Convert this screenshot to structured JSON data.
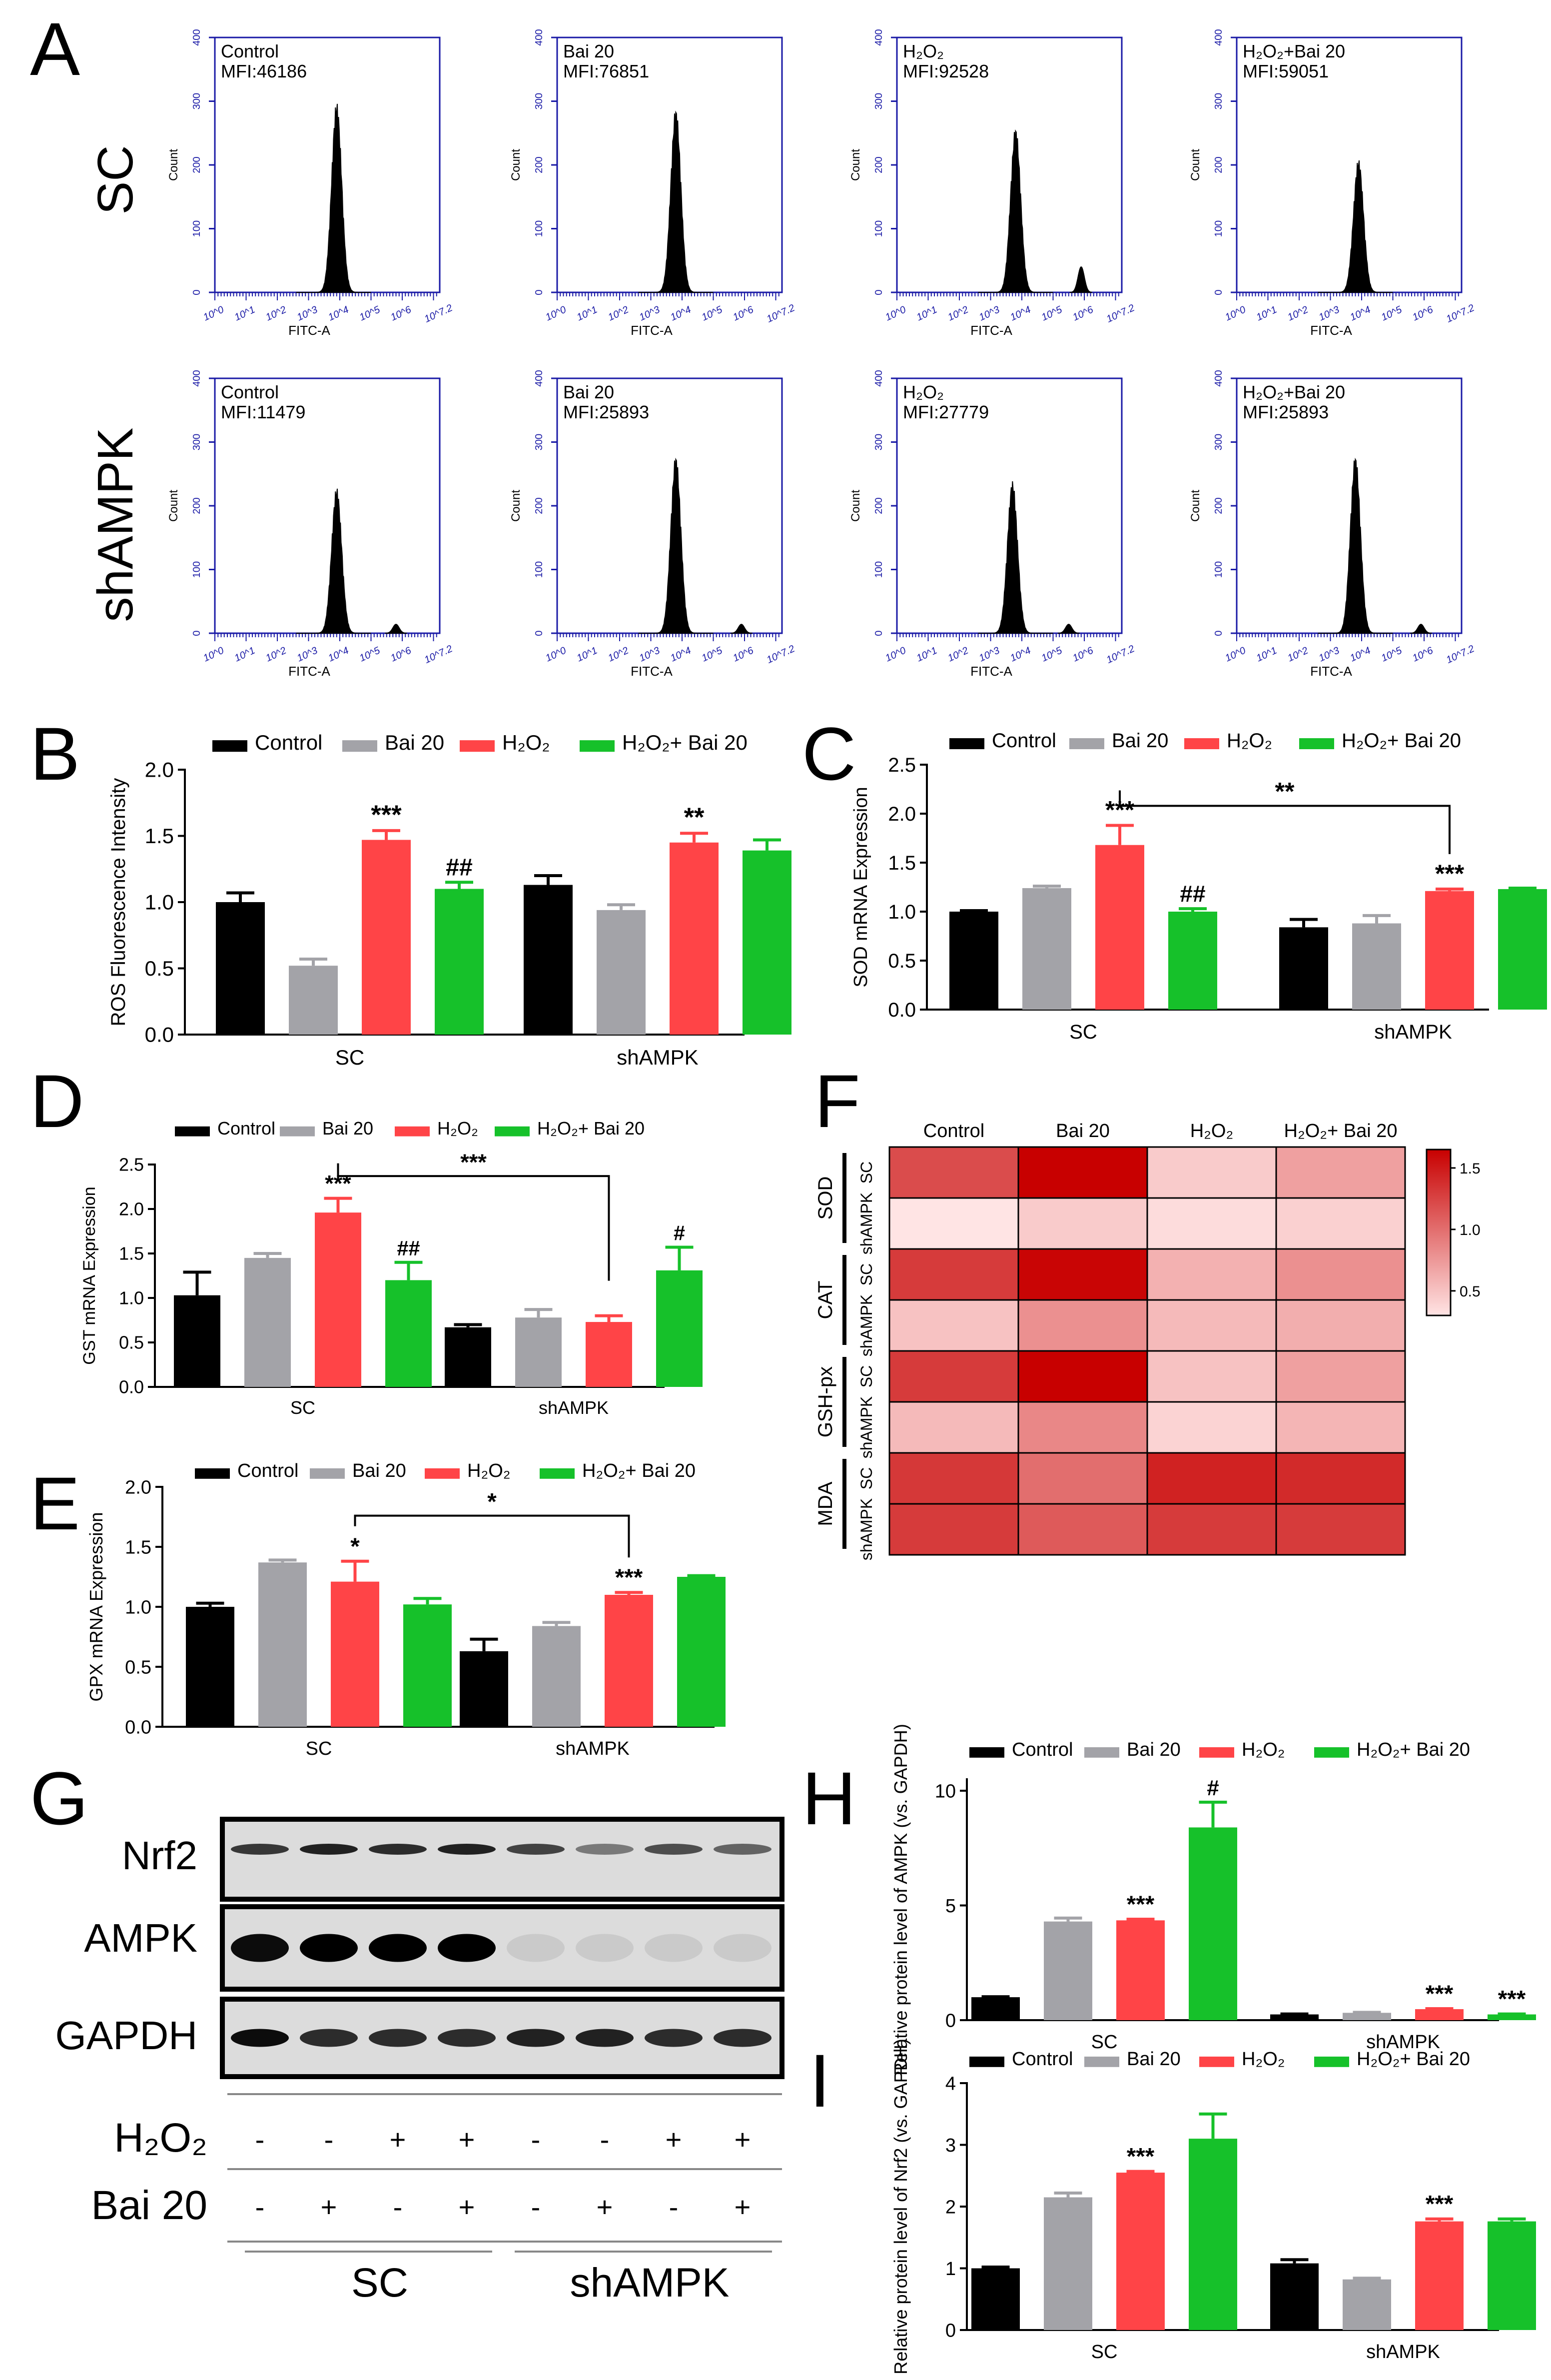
{
  "colors": {
    "control": "#000000",
    "bai": "#a3a3a8",
    "h2o2": "#ff4447",
    "combo": "#16c12a",
    "flowAxis": "#1a1aa6",
    "heatLow": "#ffe4e4",
    "heatHigh": "#c80000"
  },
  "panel_letters": [
    "A",
    "B",
    "C",
    "D",
    "E",
    "F",
    "G",
    "H",
    "I"
  ],
  "legend": {
    "control": "Control",
    "bai": "Bai 20",
    "h2o2": "H₂O₂",
    "combo": "H₂O₂+ Bai 20"
  },
  "flow": {
    "row_labels": [
      "SC",
      "shAMPK"
    ],
    "y_axis_label": "Count",
    "x_axis_label": "FITC-A",
    "y_ticks": [
      "0",
      "100",
      "200",
      "300",
      "400"
    ],
    "x_ticks": [
      "10^0",
      "10^1",
      "10^2",
      "10^3",
      "10^4",
      "10^5",
      "10^6",
      "10^7.2"
    ],
    "panels": [
      {
        "row": 0,
        "col": 0,
        "title": "Control",
        "mfi": "MFI:46186",
        "peak": 3.9,
        "peak_height": 300,
        "secondary": null
      },
      {
        "row": 0,
        "col": 1,
        "title": "Bai 20",
        "mfi": "MFI:76851",
        "peak": 3.8,
        "peak_height": 290,
        "secondary": null
      },
      {
        "row": 0,
        "col": 2,
        "title": "H₂O₂",
        "mfi": "MFI:92528",
        "peak": 3.8,
        "peak_height": 260,
        "secondary": 5.9
      },
      {
        "row": 0,
        "col": 3,
        "title": "H₂O₂+Bai 20",
        "mfi": "MFI:59051",
        "peak": 3.9,
        "peak_height": 210,
        "secondary": null
      },
      {
        "row": 1,
        "col": 0,
        "title": "Control",
        "mfi": "MFI:11479",
        "peak": 3.9,
        "peak_height": 230,
        "secondary": 5.8
      },
      {
        "row": 1,
        "col": 1,
        "title": "Bai 20",
        "mfi": "MFI:25893",
        "peak": 3.8,
        "peak_height": 280,
        "secondary": 5.9
      },
      {
        "row": 1,
        "col": 2,
        "title": "H₂O₂",
        "mfi": "MFI:27779",
        "peak": 3.7,
        "peak_height": 240,
        "secondary": 5.5
      },
      {
        "row": 1,
        "col": 3,
        "title": "H₂O₂+Bai 20",
        "mfi": "MFI:25893",
        "peak": 3.8,
        "peak_height": 280,
        "secondary": 5.9
      }
    ]
  },
  "chart_data": [
    {
      "id": "B",
      "type": "bar",
      "categories": [
        "SC",
        "shAMPK"
      ],
      "ylabel": "ROS Fluorescence Intensity",
      "ylim": [
        0,
        2.0
      ],
      "yticks": [
        "0.0",
        "0.5",
        "1.0",
        "1.5",
        "2.0"
      ],
      "series": [
        {
          "name": "Control",
          "values": [
            1.0,
            1.13
          ],
          "errors": [
            0.07,
            0.07
          ],
          "marks": [
            "",
            ""
          ]
        },
        {
          "name": "Bai 20",
          "values": [
            0.52,
            0.94
          ],
          "errors": [
            0.05,
            0.04
          ],
          "marks": [
            "",
            ""
          ]
        },
        {
          "name": "H₂O₂",
          "values": [
            1.47,
            1.45
          ],
          "errors": [
            0.07,
            0.07
          ],
          "marks": [
            "***",
            "**"
          ]
        },
        {
          "name": "H₂O₂+ Bai 20",
          "values": [
            1.1,
            1.39
          ],
          "errors": [
            0.05,
            0.08
          ],
          "marks": [
            "##",
            ""
          ]
        }
      ],
      "brackets": []
    },
    {
      "id": "C",
      "type": "bar",
      "categories": [
        "SC",
        "shAMPK"
      ],
      "ylabel": "SOD mRNA Expression",
      "ylim": [
        0,
        2.5
      ],
      "yticks": [
        "0.0",
        "0.5",
        "1.0",
        "1.5",
        "2.0",
        "2.5"
      ],
      "series": [
        {
          "name": "Control",
          "values": [
            1.0,
            0.84
          ],
          "errors": [
            0.01,
            0.08
          ],
          "marks": [
            "",
            ""
          ]
        },
        {
          "name": "Bai 20",
          "values": [
            1.24,
            0.88
          ],
          "errors": [
            0.02,
            0.08
          ],
          "marks": [
            "",
            ""
          ]
        },
        {
          "name": "H₂O₂",
          "values": [
            1.68,
            1.21
          ],
          "errors": [
            0.2,
            0.02
          ],
          "marks": [
            "***",
            "***"
          ]
        },
        {
          "name": "H₂O₂+ Bai 20",
          "values": [
            1.0,
            1.23
          ],
          "errors": [
            0.03,
            0.01
          ],
          "marks": [
            "##",
            ""
          ]
        }
      ],
      "brackets": [
        {
          "from": [
            0,
            2
          ],
          "to": [
            1,
            2
          ],
          "y": 2.08,
          "label": "**"
        }
      ]
    },
    {
      "id": "D",
      "type": "bar",
      "categories": [
        "SC",
        "shAMPK"
      ],
      "ylabel": "GST mRNA Expression",
      "ylim": [
        0,
        2.5
      ],
      "yticks": [
        "0.0",
        "0.5",
        "1.0",
        "1.5",
        "2.0",
        "2.5"
      ],
      "series": [
        {
          "name": "Control",
          "values": [
            1.03,
            0.67
          ],
          "errors": [
            0.26,
            0.03
          ],
          "marks": [
            "",
            ""
          ]
        },
        {
          "name": "Bai 20",
          "values": [
            1.45,
            0.78
          ],
          "errors": [
            0.05,
            0.09
          ],
          "marks": [
            "",
            ""
          ]
        },
        {
          "name": "H₂O₂",
          "values": [
            1.96,
            0.73
          ],
          "errors": [
            0.16,
            0.07
          ],
          "marks": [
            "***",
            ""
          ]
        },
        {
          "name": "H₂O₂+ Bai 20",
          "values": [
            1.2,
            1.31
          ],
          "errors": [
            0.2,
            0.26
          ],
          "marks": [
            "##",
            "#"
          ]
        }
      ],
      "brackets": [
        {
          "from": [
            0,
            2
          ],
          "to": [
            1,
            2
          ],
          "y": 2.37,
          "label": "***"
        }
      ]
    },
    {
      "id": "E",
      "type": "bar",
      "categories": [
        "SC",
        "shAMPK"
      ],
      "ylabel": "GPX mRNA Expression",
      "ylim": [
        0,
        2.0
      ],
      "yticks": [
        "0.0",
        "0.5",
        "1.0",
        "1.5",
        "2.0"
      ],
      "series": [
        {
          "name": "Control",
          "values": [
            1.0,
            0.63
          ],
          "errors": [
            0.03,
            0.1
          ],
          "marks": [
            "",
            ""
          ]
        },
        {
          "name": "Bai 20",
          "values": [
            1.37,
            0.84
          ],
          "errors": [
            0.02,
            0.03
          ],
          "marks": [
            "",
            ""
          ]
        },
        {
          "name": "H₂O₂",
          "values": [
            1.21,
            1.1
          ],
          "errors": [
            0.17,
            0.02
          ],
          "marks": [
            "*",
            "***"
          ]
        },
        {
          "name": "H₂O₂+ Bai 20",
          "values": [
            1.02,
            1.25
          ],
          "errors": [
            0.05,
            0.01
          ],
          "marks": [
            "",
            ""
          ]
        }
      ],
      "brackets": [
        {
          "from": [
            0,
            2
          ],
          "to": [
            1,
            2
          ],
          "y": 1.76,
          "label": "*"
        }
      ]
    },
    {
      "id": "H",
      "type": "bar",
      "categories": [
        "SC",
        "shAMPK"
      ],
      "ylabel": "Relative protein level of AMPK (vs. GAPDH)",
      "ylim": [
        0,
        10.5
      ],
      "yticks": [
        "0",
        "5",
        "10"
      ],
      "series": [
        {
          "name": "Control",
          "values": [
            1.0,
            0.25
          ],
          "errors": [
            0.02,
            0.02
          ],
          "marks": [
            "",
            ""
          ]
        },
        {
          "name": "Bai 20",
          "values": [
            4.3,
            0.32
          ],
          "errors": [
            0.15,
            0.02
          ],
          "marks": [
            "",
            ""
          ]
        },
        {
          "name": "H₂O₂",
          "values": [
            4.35,
            0.48
          ],
          "errors": [
            0.05,
            0.02
          ],
          "marks": [
            "***",
            "***"
          ]
        },
        {
          "name": "H₂O₂+ Bai 20",
          "values": [
            8.4,
            0.25
          ],
          "errors": [
            1.1,
            0.02
          ],
          "marks": [
            "#",
            "***"
          ]
        }
      ],
      "brackets": []
    },
    {
      "id": "I",
      "type": "bar",
      "categories": [
        "SC",
        "shAMPK"
      ],
      "ylabel": "Relative protein level of Nrf2 (vs. GAPDH)",
      "ylim": [
        0,
        4
      ],
      "yticks": [
        "0",
        "1",
        "2",
        "3",
        "4"
      ],
      "series": [
        {
          "name": "Control",
          "values": [
            1.0,
            1.08
          ],
          "errors": [
            0.02,
            0.06
          ],
          "marks": [
            "",
            ""
          ]
        },
        {
          "name": "Bai 20",
          "values": [
            2.15,
            0.82
          ],
          "errors": [
            0.07,
            0.02
          ],
          "marks": [
            "",
            ""
          ]
        },
        {
          "name": "H₂O₂",
          "values": [
            2.55,
            1.76
          ],
          "errors": [
            0.02,
            0.04
          ],
          "marks": [
            "***",
            "***"
          ]
        },
        {
          "name": "H₂O₂+ Bai 20",
          "values": [
            3.1,
            1.76
          ],
          "errors": [
            0.4,
            0.04
          ],
          "marks": [
            "",
            ""
          ]
        }
      ],
      "brackets": []
    },
    {
      "id": "F",
      "type": "heatmap",
      "columns": [
        "Control",
        "Bai 20",
        "H₂O₂",
        "H₂O₂+ Bai 20"
      ],
      "groups": [
        "SOD",
        "CAT",
        "GSH-px",
        "MDA"
      ],
      "row_labels": [
        "SC",
        "shAMPK"
      ],
      "values": [
        [
          1.2,
          1.65,
          0.45,
          0.7
        ],
        [
          0.3,
          0.45,
          0.35,
          0.42
        ],
        [
          1.3,
          1.62,
          0.6,
          0.8
        ],
        [
          0.5,
          0.8,
          0.55,
          0.62
        ],
        [
          1.3,
          1.65,
          0.5,
          0.7
        ],
        [
          0.55,
          0.85,
          0.4,
          0.58
        ],
        [
          1.32,
          1.0,
          1.45,
          1.4
        ],
        [
          1.3,
          1.12,
          1.3,
          1.3
        ]
      ],
      "colorbar_ticks": [
        "1.5",
        "1.0",
        "0.5"
      ],
      "vmin": 0.3,
      "vmax": 1.65
    }
  ],
  "blot": {
    "bands": [
      "Nrf2",
      "AMPK",
      "GAPDH"
    ],
    "intensity": {
      "Nrf2": [
        0.75,
        0.85,
        0.8,
        0.85,
        0.7,
        0.45,
        0.65,
        0.55
      ],
      "AMPK": [
        0.95,
        1.0,
        1.0,
        1.0,
        0.08,
        0.08,
        0.08,
        0.08
      ],
      "GAPDH": [
        0.95,
        0.8,
        0.8,
        0.8,
        0.85,
        0.85,
        0.8,
        0.8
      ]
    },
    "treatment_labels": [
      "H₂O₂",
      "Bai 20"
    ],
    "h2o2_signs": [
      "-",
      "-",
      "+",
      "+",
      "-",
      "-",
      "+",
      "+"
    ],
    "bai_signs": [
      "-",
      "+",
      "-",
      "+",
      "-",
      "+",
      "-",
      "+"
    ],
    "group_labels": [
      "SC",
      "shAMPK"
    ]
  }
}
